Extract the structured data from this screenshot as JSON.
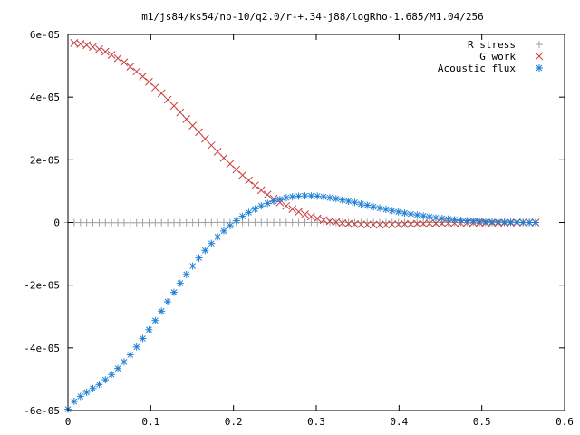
{
  "chart_data": {
    "type": "scatter",
    "title": "m1/js84/ks54/np-10/q2.0/r-+.34-j88/logRho-1.685/M1.04/256",
    "xlabel": "",
    "ylabel": "",
    "xlim": [
      0,
      0.6
    ],
    "ylim": [
      -6e-05,
      6e-05
    ],
    "grid": false,
    "legend": "top-right",
    "xticks": [
      {
        "v": 0,
        "label": "0"
      },
      {
        "v": 0.1,
        "label": "0.1"
      },
      {
        "v": 0.2,
        "label": "0.2"
      },
      {
        "v": 0.3,
        "label": "0.3"
      },
      {
        "v": 0.4,
        "label": "0.4"
      },
      {
        "v": 0.5,
        "label": "0.5"
      },
      {
        "v": 0.6,
        "label": "0.6"
      }
    ],
    "yticks": [
      {
        "v": 6e-05,
        "label": "6e-05"
      },
      {
        "v": 4e-05,
        "label": "4e-05"
      },
      {
        "v": 2e-05,
        "label": "2e-05"
      },
      {
        "v": 0,
        "label": "0"
      },
      {
        "v": -2e-05,
        "label": "-2e-05"
      },
      {
        "v": -4e-05,
        "label": "-4e-05"
      },
      {
        "v": -6e-05,
        "label": "-6e-05"
      }
    ],
    "series": [
      {
        "name": "R stress",
        "marker": "plus",
        "color": "#a0a0a0",
        "x": [
          0.0,
          0.0075,
          0.0151,
          0.0226,
          0.0301,
          0.0377,
          0.0452,
          0.0527,
          0.0603,
          0.0678,
          0.0753,
          0.0829,
          0.0904,
          0.0979,
          0.1055,
          0.113,
          0.1205,
          0.1281,
          0.1356,
          0.1431,
          0.1507,
          0.1582,
          0.1657,
          0.1733,
          0.1808,
          0.1883,
          0.1959,
          0.2034,
          0.2109,
          0.2185,
          0.226,
          0.2335,
          0.2411,
          0.2486,
          0.2561,
          0.2637,
          0.2712,
          0.2787,
          0.2863,
          0.2938,
          0.3013,
          0.3089,
          0.3164,
          0.3239,
          0.3315,
          0.339,
          0.3465,
          0.3541,
          0.3616,
          0.3691,
          0.3767,
          0.3842,
          0.3917,
          0.3993,
          0.4068,
          0.4143,
          0.4219,
          0.4294,
          0.4369,
          0.4445,
          0.452,
          0.4595,
          0.4671,
          0.4746,
          0.4821,
          0.4897,
          0.4972,
          0.5047,
          0.5123,
          0.5198,
          0.5273,
          0.5349,
          0.5424,
          0.5499,
          0.5575,
          0.565
        ],
        "y": [
          0.0,
          -1e-08,
          -2e-08,
          -3e-08,
          -4e-08,
          -5e-08,
          -6e-08,
          -7e-08,
          -7e-08,
          -8e-08,
          -8e-08,
          -8e-08,
          -8e-08,
          -8e-08,
          -7e-08,
          -7e-08,
          -6e-08,
          -5e-08,
          -4e-08,
          -3e-08,
          -2e-08,
          -1e-08,
          0.0,
          1e-08,
          2e-08,
          3e-08,
          3e-08,
          4e-08,
          4e-08,
          4e-08,
          4e-08,
          4e-08,
          4e-08,
          3e-08,
          3e-08,
          3e-08,
          2e-08,
          2e-08,
          2e-08,
          1e-08,
          1e-08,
          1e-08,
          1e-08,
          0.0,
          0.0,
          0.0,
          0.0,
          0.0,
          0.0,
          0.0,
          0.0,
          0.0,
          0.0,
          0.0,
          0.0,
          0.0,
          0.0,
          0.0,
          0.0,
          0.0,
          0.0,
          0.0,
          0.0,
          0.0,
          0.0,
          0.0,
          0.0,
          0.0,
          0.0,
          0.0,
          0.0,
          0.0,
          0.0,
          0.0,
          0.0,
          0.0
        ]
      },
      {
        "name": "G work",
        "marker": "cross",
        "color": "#c83c3c",
        "x": [
          0.0075,
          0.0151,
          0.0226,
          0.0301,
          0.0377,
          0.0452,
          0.0527,
          0.0603,
          0.0678,
          0.0753,
          0.0829,
          0.0904,
          0.0979,
          0.1055,
          0.113,
          0.1205,
          0.1281,
          0.1356,
          0.1431,
          0.1507,
          0.1582,
          0.1657,
          0.1733,
          0.1808,
          0.1883,
          0.1959,
          0.2034,
          0.2109,
          0.2185,
          0.226,
          0.2335,
          0.2411,
          0.2486,
          0.2561,
          0.2637,
          0.2712,
          0.2787,
          0.2863,
          0.2938,
          0.3013,
          0.3089,
          0.3164,
          0.3239,
          0.3315,
          0.339,
          0.3465,
          0.3541,
          0.3616,
          0.3691,
          0.3767,
          0.3842,
          0.3917,
          0.3993,
          0.4068,
          0.4143,
          0.4219,
          0.4294,
          0.4369,
          0.4445,
          0.452,
          0.4595,
          0.4671,
          0.4746,
          0.4821,
          0.4897,
          0.4972,
          0.5047,
          0.5123,
          0.5198,
          0.5273,
          0.5349,
          0.5424,
          0.5499,
          0.5575,
          0.565
        ],
        "y": [
          5.73e-05,
          5.7e-05,
          5.66e-05,
          5.6e-05,
          5.53e-05,
          5.45e-05,
          5.35e-05,
          5.24e-05,
          5.11e-05,
          4.97e-05,
          4.82e-05,
          4.66e-05,
          4.49e-05,
          4.31e-05,
          4.12e-05,
          3.92e-05,
          3.72e-05,
          3.51e-05,
          3.3e-05,
          3.09e-05,
          2.88e-05,
          2.67e-05,
          2.46e-05,
          2.26e-05,
          2.06e-05,
          1.87e-05,
          1.69e-05,
          1.51e-05,
          1.34e-05,
          1.18e-05,
          1.03e-05,
          8.9e-06,
          7.6e-06,
          6.4e-06,
          5.3e-06,
          4.3e-06,
          3.4e-06,
          2.6e-06,
          1.9e-06,
          1.3e-06,
          8e-07,
          4e-07,
          1e-07,
          -2e-07,
          -4e-07,
          -5e-07,
          -6e-07,
          -7e-07,
          -7e-07,
          -7e-07,
          -7e-07,
          -6e-07,
          -6e-07,
          -5e-07,
          -5e-07,
          -4e-07,
          -4e-07,
          -3e-07,
          -3e-07,
          -3e-07,
          -2e-07,
          -2e-07,
          -2e-07,
          -1e-07,
          -1e-07,
          -1e-07,
          -1e-07,
          -1e-07,
          -1e-07,
          -1e-07,
          -1e-07,
          0.0,
          0.0,
          0.0,
          0.0
        ]
      },
      {
        "name": "Acoustic flux",
        "marker": "star",
        "color": "#1f7fd6",
        "x": [
          0.0,
          0.0075,
          0.0151,
          0.0226,
          0.0301,
          0.0377,
          0.0452,
          0.0527,
          0.0603,
          0.0678,
          0.0753,
          0.0829,
          0.0904,
          0.0979,
          0.1055,
          0.113,
          0.1205,
          0.1281,
          0.1356,
          0.1431,
          0.1507,
          0.1582,
          0.1657,
          0.1733,
          0.1808,
          0.1883,
          0.1959,
          0.2034,
          0.2109,
          0.2185,
          0.226,
          0.2335,
          0.2411,
          0.2486,
          0.2561,
          0.2637,
          0.2712,
          0.2787,
          0.2863,
          0.2938,
          0.3013,
          0.3089,
          0.3164,
          0.3239,
          0.3315,
          0.339,
          0.3465,
          0.3541,
          0.3616,
          0.3691,
          0.3767,
          0.3842,
          0.3917,
          0.3993,
          0.4068,
          0.4143,
          0.4219,
          0.4294,
          0.4369,
          0.4445,
          0.452,
          0.4595,
          0.4671,
          0.4746,
          0.4821,
          0.4897,
          0.4972,
          0.5047,
          0.5123,
          0.5198,
          0.5273,
          0.5349,
          0.5424,
          0.5499,
          0.5575,
          0.565
        ],
        "y": [
          -5.96e-05,
          -5.71e-05,
          -5.55e-05,
          -5.42e-05,
          -5.3e-05,
          -5.17e-05,
          -5.02e-05,
          -4.85e-05,
          -4.66e-05,
          -4.45e-05,
          -4.22e-05,
          -3.97e-05,
          -3.7e-05,
          -3.42e-05,
          -3.13e-05,
          -2.83e-05,
          -2.53e-05,
          -2.23e-05,
          -1.94e-05,
          -1.66e-05,
          -1.39e-05,
          -1.13e-05,
          -8.9e-06,
          -6.7e-06,
          -4.6e-06,
          -2.7e-06,
          -1e-06,
          6e-07,
          2e-06,
          3.2e-06,
          4.3e-06,
          5.3e-06,
          6.1e-06,
          6.8e-06,
          7.4e-06,
          7.9e-06,
          8.2e-06,
          8.4e-06,
          8.5e-06,
          8.5e-06,
          8.4e-06,
          8.2e-06,
          7.9e-06,
          7.6e-06,
          7.2e-06,
          6.8e-06,
          6.4e-06,
          5.9e-06,
          5.5e-06,
          5e-06,
          4.6e-06,
          4.2e-06,
          3.8e-06,
          3.4e-06,
          3e-06,
          2.7e-06,
          2.4e-06,
          2.1e-06,
          1.8e-06,
          1.5e-06,
          1.3e-06,
          1.1e-06,
          9e-07,
          7e-07,
          6e-07,
          5e-07,
          4e-07,
          3e-07,
          2e-07,
          2e-07,
          1e-07,
          1e-07,
          1e-07,
          0.0,
          0.0,
          0.0
        ]
      }
    ]
  }
}
